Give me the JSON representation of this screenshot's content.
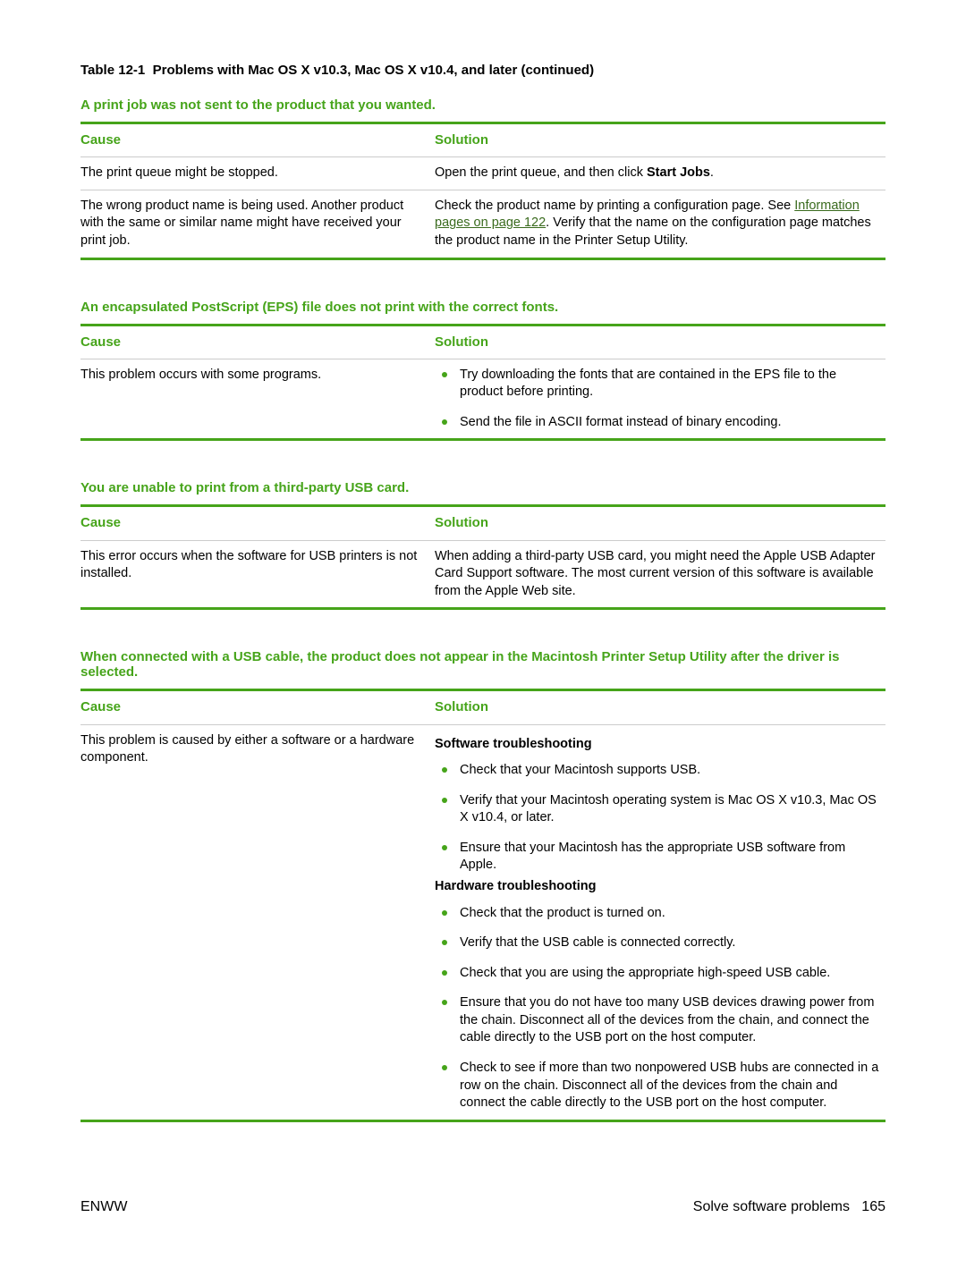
{
  "tableCaption": {
    "number": "Table 12-1",
    "title": "Problems with Mac OS X v10.3, Mac OS X v10.4, and later (continued)"
  },
  "colHeaders": {
    "cause": "Cause",
    "solution": "Solution"
  },
  "sections": [
    {
      "heading": "A print job was not sent to the product that you wanted.",
      "rows": [
        {
          "cause": "The print queue might be stopped.",
          "solution_plain_pre": "Open the print queue, and then click ",
          "solution_bold": "Start Jobs",
          "solution_plain_post": "."
        },
        {
          "cause": "The wrong product name is being used. Another product with the same or similar name might have received your print job.",
          "solution_plain_pre": "Check the product name by printing a configuration page. See ",
          "solution_link": "Information pages on page 122",
          "solution_plain_post": ". Verify that the name on the configuration page matches the product name in the Printer Setup Utility."
        }
      ]
    },
    {
      "heading": "An encapsulated PostScript (EPS) file does not print with the correct fonts.",
      "rows": [
        {
          "cause": "This problem occurs with some programs.",
          "solution_list": [
            "Try downloading the fonts that are contained in the EPS file to the product before printing.",
            "Send the file in ASCII format instead of binary encoding."
          ]
        }
      ]
    },
    {
      "heading": "You are unable to print from a third-party USB card.",
      "rows": [
        {
          "cause": "This error occurs when the software for USB printers is not installed.",
          "solution_plain_pre": "When adding a third-party USB card, you might need the Apple USB Adapter Card Support software. The most current version of this software is available from the Apple Web site."
        }
      ]
    },
    {
      "heading": "When connected with a USB cable, the product does not appear in the Macintosh Printer Setup Utility after the driver is selected.",
      "rows": [
        {
          "cause": "This problem is caused by either a software or a hardware component.",
          "solution_groups": [
            {
              "title": "Software troubleshooting",
              "items": [
                "Check that your Macintosh supports USB.",
                "Verify that your Macintosh operating system is Mac OS X v10.3, Mac OS X v10.4, or later.",
                "Ensure that your Macintosh has the appropriate USB software from Apple."
              ]
            },
            {
              "title": "Hardware troubleshooting",
              "items": [
                "Check that the product is turned on.",
                "Verify that the USB cable is connected correctly.",
                "Check that you are using the appropriate high-speed USB cable.",
                "Ensure that you do not have too many USB devices drawing power from the chain. Disconnect all of the devices from the chain, and connect the cable directly to the USB port on the host computer.",
                "Check to see if more than two nonpowered USB hubs are connected in a row on the chain. Disconnect all of the devices from the chain and connect the cable directly to the USB port on the host computer."
              ]
            }
          ]
        }
      ]
    }
  ],
  "footer": {
    "left": "ENWW",
    "rightLabel": "Solve software problems",
    "page": "165"
  }
}
